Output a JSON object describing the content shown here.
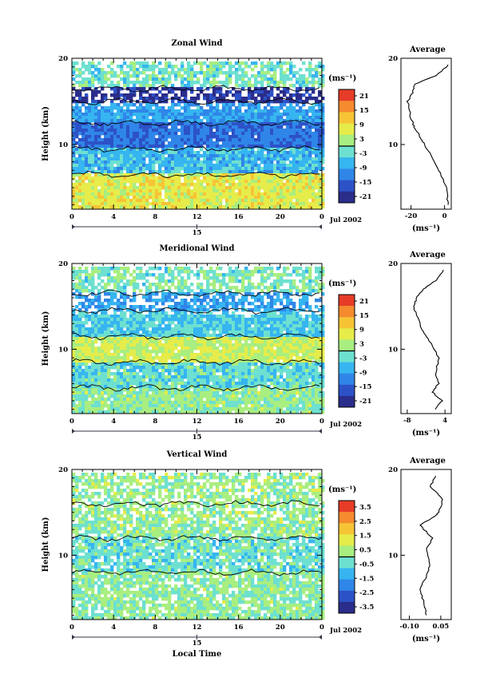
{
  "figure": {
    "date_label": "Jul 2002",
    "day_label": "15",
    "x_label": "Local Time",
    "unit_label": "(ms⁻¹)",
    "average_title": "Average"
  },
  "chart_data": [
    {
      "type": "heatmap",
      "title": "Zonal Wind",
      "xlabel": "",
      "ylabel": "Height (km)",
      "xlim": [
        0,
        24
      ],
      "ylim": [
        2.5,
        20
      ],
      "xticks": [
        "0",
        "4",
        "8",
        "12",
        "16",
        "20",
        "0"
      ],
      "yticks": [
        "10",
        "20"
      ],
      "colorbar": {
        "label": "(ms⁻¹)",
        "ticks": [
          "21",
          "15",
          "9",
          "3",
          "-3",
          "-9",
          "-15",
          "-21"
        ],
        "range": [
          -24,
          24
        ]
      },
      "layers": [
        {
          "z0": 2.5,
          "z1": 6.5,
          "value": 7
        },
        {
          "z0": 6.5,
          "z1": 9.5,
          "value": -7
        },
        {
          "z0": 9.5,
          "z1": 12.5,
          "value": -14
        },
        {
          "z0": 12.5,
          "z1": 15.0,
          "value": -9
        },
        {
          "z0": 15.0,
          "z1": 16.5,
          "value": -21
        },
        {
          "z0": 16.5,
          "z1": 19.5,
          "value": -2
        }
      ],
      "profile": {
        "x": [
          2,
          1,
          -1,
          -6,
          -12,
          -15,
          -18,
          -20,
          -22,
          -19,
          -18,
          -5,
          4
        ],
        "y": [
          3,
          5,
          6,
          8,
          10,
          11,
          12,
          13,
          15,
          16,
          17,
          18,
          19.5
        ],
        "xlim": [
          -26,
          4
        ],
        "xticks": [
          "-20",
          "0"
        ]
      }
    },
    {
      "type": "heatmap",
      "title": "Meridional Wind",
      "xlabel": "",
      "ylabel": "Height (km)",
      "xlim": [
        0,
        24
      ],
      "ylim": [
        2.5,
        20
      ],
      "xticks": [
        "0",
        "4",
        "8",
        "12",
        "16",
        "20",
        "0"
      ],
      "yticks": [
        "10",
        "20"
      ],
      "colorbar": {
        "label": "(ms⁻¹)",
        "ticks": [
          "21",
          "15",
          "9",
          "3",
          "-3",
          "-9",
          "-15",
          "-21"
        ],
        "range": [
          -24,
          24
        ]
      },
      "layers": [
        {
          "z0": 2.5,
          "z1": 5.5,
          "value": 1
        },
        {
          "z0": 5.5,
          "z1": 8.5,
          "value": -3
        },
        {
          "z0": 8.5,
          "z1": 11.5,
          "value": 5
        },
        {
          "z0": 11.5,
          "z1": 14.5,
          "value": -5
        },
        {
          "z0": 14.5,
          "z1": 16.5,
          "value": -9
        },
        {
          "z0": 16.5,
          "z1": 19.5,
          "value": -1
        }
      ],
      "profile": {
        "x": [
          1,
          3,
          0,
          2,
          1,
          2,
          -1,
          -3,
          -5,
          -6,
          -5,
          -3,
          1,
          4
        ],
        "y": [
          3,
          4,
          5,
          6,
          7,
          9,
          11,
          12,
          14,
          15,
          16,
          17,
          18,
          19.5
        ],
        "xlim": [
          -10,
          6
        ],
        "xticks": [
          "-8",
          "4"
        ]
      }
    },
    {
      "type": "heatmap",
      "title": "Vertical Wind",
      "xlabel": "Local Time",
      "ylabel": "Height (km)",
      "xlim": [
        0,
        24
      ],
      "ylim": [
        2.5,
        20
      ],
      "xticks": [
        "0",
        "4",
        "8",
        "12",
        "16",
        "20",
        "0"
      ],
      "yticks": [
        "10",
        "20"
      ],
      "colorbar": {
        "label": "(ms⁻¹)",
        "ticks": [
          "3.5",
          "2.5",
          "1.5",
          "0.5",
          "-0.5",
          "-1.5",
          "-2.5",
          "-3.5"
        ],
        "range": [
          -4,
          4
        ]
      },
      "layers": [
        {
          "z0": 2.5,
          "z1": 8.0,
          "value": 0.1
        },
        {
          "z0": 8.0,
          "z1": 12.0,
          "value": -0.4
        },
        {
          "z0": 12.0,
          "z1": 16.0,
          "value": 0.2
        },
        {
          "z0": 16.0,
          "z1": 19.5,
          "value": 0.3
        }
      ],
      "profile": {
        "x": [
          -0.02,
          -0.03,
          -0.05,
          -0.02,
          0.0,
          -0.02,
          0.01,
          -0.05,
          0.02,
          0.04,
          0.06,
          0.0,
          0.03
        ],
        "y": [
          3,
          4.5,
          6,
          7.5,
          9,
          10.5,
          12,
          13.5,
          14.5,
          15,
          16.5,
          18,
          19.5
        ],
        "xlim": [
          -0.14,
          0.1
        ],
        "xticks": [
          "-0.10",
          "0.05"
        ]
      }
    }
  ]
}
